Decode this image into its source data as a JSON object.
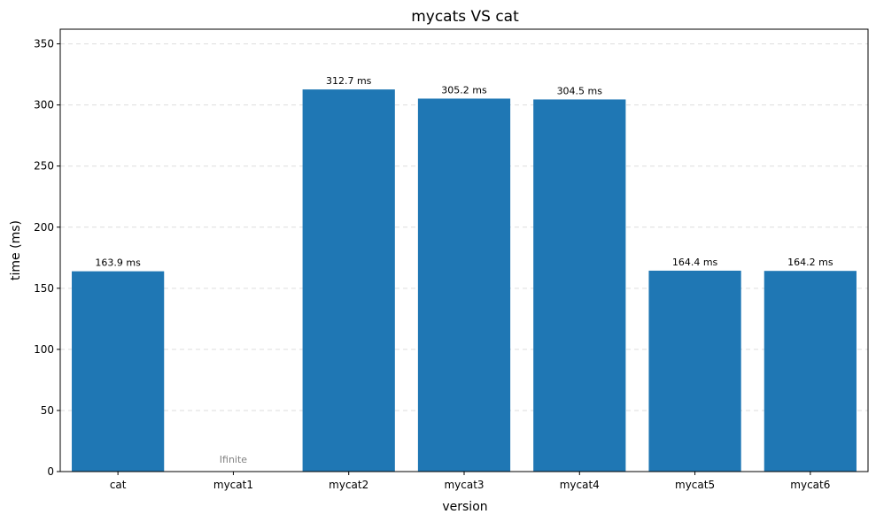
{
  "chart_data": {
    "type": "bar",
    "title": "mycats VS cat",
    "xlabel": "version",
    "ylabel": "time (ms)",
    "categories": [
      "cat",
      "mycat1",
      "mycat2",
      "mycat3",
      "mycat4",
      "mycat5",
      "mycat6"
    ],
    "values": [
      163.9,
      null,
      312.7,
      305.2,
      304.5,
      164.4,
      164.2
    ],
    "data_labels": [
      "163.9 ms",
      "Ifinite",
      "312.7 ms",
      "305.2 ms",
      "304.5 ms",
      "164.4 ms",
      "164.2 ms"
    ],
    "ylim": [
      0,
      362
    ],
    "yticks": [
      0,
      50,
      100,
      150,
      200,
      250,
      300,
      350
    ],
    "grid": "y-dashed",
    "colors": {
      "bar": "#1f77b4",
      "grid": "#dddddd",
      "note": "#808080"
    }
  }
}
